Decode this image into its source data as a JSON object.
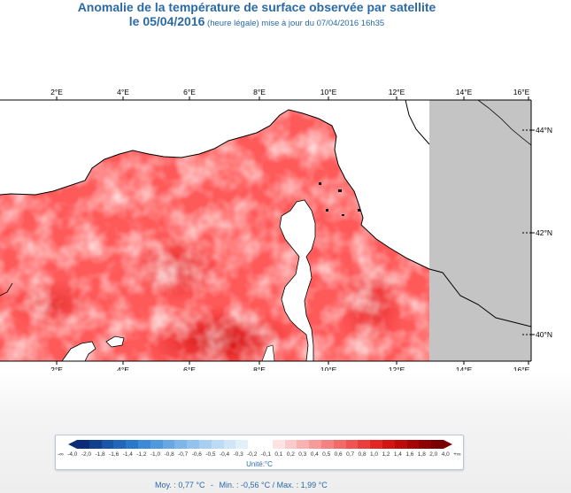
{
  "title": {
    "line1": "Anomalie de la température de surface observée par satellite",
    "line2_main": "le 05/04/2016",
    "line2_sub": " (heure légale) mise à jour du 07/04/2016 16h35"
  },
  "map": {
    "lon_labels": [
      "2°E",
      "4°E",
      "6°E",
      "8°E",
      "10°E",
      "12°E",
      "14°E",
      "16°E"
    ],
    "lat_labels": [
      "44°N",
      "42°N",
      "40°N"
    ],
    "colors": {
      "sea_anomaly": "#ff5a5a",
      "land": "#ffffff",
      "masked": "#c4c4c4",
      "coast": "#000000"
    }
  },
  "legend": {
    "labels": [
      "-∞",
      "-4,0",
      "-2,0",
      "-1,8",
      "-1,6",
      "-1,4",
      "-1,2",
      "-1,0",
      "-0,8",
      "-0,7",
      "-0,6",
      "-0,5",
      "-0,4",
      "-0,3",
      "-0,2",
      "-0,1",
      "0,1",
      "0,2",
      "0,3",
      "0,4",
      "0,5",
      "0,6",
      "0,7",
      "0,8",
      "1,0",
      "1,2",
      "1,4",
      "1,6",
      "1,8",
      "2,0",
      "4,0",
      "+∞"
    ],
    "colors": [
      "#0c2c7a",
      "#12408f",
      "#1a55a8",
      "#2166bb",
      "#2a78cc",
      "#3c8ad8",
      "#5199df",
      "#67a8e4",
      "#7db6e8",
      "#93c3ec",
      "#a9cff0",
      "#bddbf4",
      "#d0e6f7",
      "#e2f0fa",
      "#ffffff",
      "#ffffff",
      "#fde3e3",
      "#fbcaca",
      "#f9b2b2",
      "#f79a9a",
      "#f48282",
      "#f16b6b",
      "#ee5454",
      "#ea3d3d",
      "#e22626",
      "#d21414",
      "#bd0b0b",
      "#a60505",
      "#8f0202",
      "#7a0000"
    ],
    "unit": "Unité:°C"
  },
  "stats": {
    "moy": "Moy. : 0,77 °C",
    "sep": "-",
    "minmax": "Min. : -0,56 °C / Max. : 1,99 °C"
  }
}
